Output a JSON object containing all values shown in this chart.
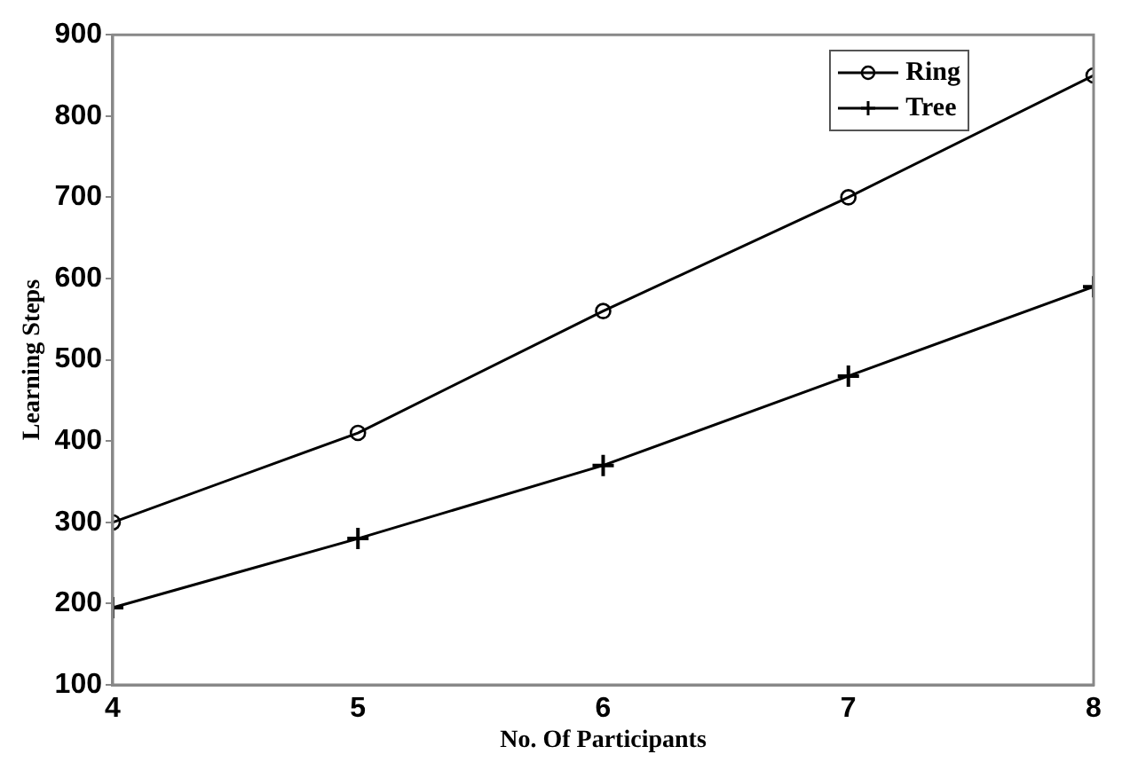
{
  "chart_data": {
    "type": "line",
    "xlabel": "No. Of Participants",
    "ylabel": "Learning Steps",
    "x": [
      4,
      5,
      6,
      7,
      8
    ],
    "series": [
      {
        "name": "Ring",
        "color": "#000000",
        "marker": "circle",
        "values": [
          300,
          410,
          560,
          700,
          850
        ]
      },
      {
        "name": "Tree",
        "color": "#000000",
        "marker": "cross",
        "values": [
          195,
          280,
          370,
          480,
          590
        ]
      }
    ],
    "xlim": [
      4,
      8
    ],
    "xticks": [
      4,
      5,
      6,
      7,
      8
    ],
    "ylim": [
      100,
      900
    ],
    "yticks": [
      100,
      200,
      300,
      400,
      500,
      600,
      700,
      800,
      900
    ],
    "grid": false,
    "legend": "top right",
    "line_style": "solid"
  }
}
